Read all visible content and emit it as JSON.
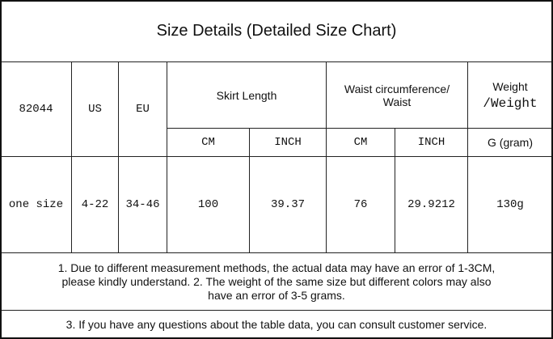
{
  "title": "Size Details (Detailed Size Chart)",
  "table": {
    "header": {
      "model": "82044",
      "us": "US",
      "eu": "EU",
      "skirt_length": "Skirt Length",
      "waist": "Waist circumference/ Waist",
      "weight": [
        "Weight",
        "/Weight"
      ]
    },
    "units": [
      "CM",
      "INCH",
      "CM",
      "INCH",
      "G (gram)"
    ],
    "row": [
      "one size",
      "4-22",
      "34-46",
      "100",
      "39.37",
      "76",
      "29.9212",
      "130g"
    ]
  },
  "notes": [
    "1. Due to different measurement methods, the actual data may have an error of 1-3CM, please kindly understand. 2. The weight of the same size but different colors may also have an error of 3-5 grams.",
    "3. If you have any questions about the table data, you can consult customer service."
  ]
}
